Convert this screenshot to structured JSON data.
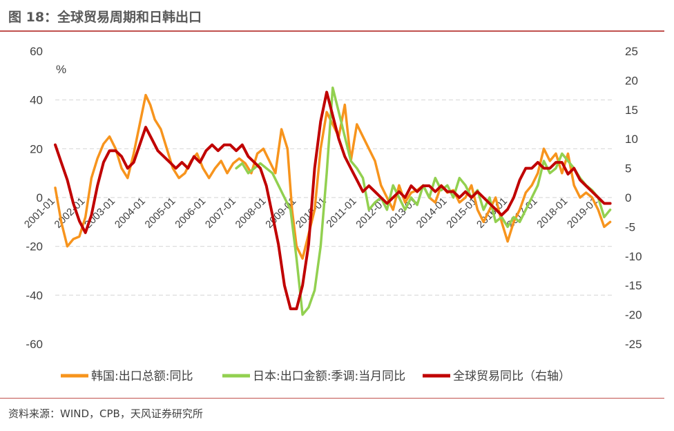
{
  "header": {
    "title": "图 18：全球贸易周期和日韩出口"
  },
  "footer": {
    "source": "资料来源：WIND，CPB，天风证券研究所"
  },
  "chart_data": {
    "type": "line",
    "y_unit": "%",
    "ylim_left": [
      -60,
      60
    ],
    "yticks_left": [
      "60",
      "40",
      "20",
      "0",
      "-20",
      "-40",
      "-60"
    ],
    "ylim_right": [
      -25,
      25
    ],
    "yticks_right": [
      "25",
      "20",
      "15",
      "10",
      "5",
      "0",
      "-5",
      "-10",
      "-15",
      "-20",
      "-25"
    ],
    "x_range": [
      2001.0,
      2019.5
    ],
    "xticks": [
      "2001-01",
      "2002-01",
      "2003-01",
      "2004-01",
      "2005-01",
      "2006-01",
      "2007-01",
      "2008-01",
      "2009-01",
      "2010-01",
      "2011-01",
      "2012-01",
      "2013-01",
      "2014-01",
      "2015-01",
      "2016-01",
      "2017-01",
      "2018-01",
      "2019-01"
    ],
    "grid": "horizontal dashed",
    "legend_position": "bottom",
    "series": [
      {
        "name": "韩国:出口总额:同比",
        "axis": "left",
        "color": "#f7941d",
        "x": [
          2001.0,
          2001.2,
          2001.4,
          2001.6,
          2001.8,
          2002.0,
          2002.2,
          2002.4,
          2002.6,
          2002.8,
          2003.0,
          2003.2,
          2003.4,
          2003.6,
          2003.8,
          2004.0,
          2004.15,
          2004.3,
          2004.5,
          2004.7,
          2004.9,
          2005.1,
          2005.3,
          2005.5,
          2005.7,
          2005.9,
          2006.1,
          2006.3,
          2006.5,
          2006.7,
          2006.9,
          2007.1,
          2007.3,
          2007.5,
          2007.7,
          2007.9,
          2008.1,
          2008.3,
          2008.5,
          2008.7,
          2008.85,
          2009.0,
          2009.2,
          2009.4,
          2009.6,
          2009.8,
          2010.0,
          2010.2,
          2010.4,
          2010.6,
          2010.8,
          2011.0,
          2011.2,
          2011.4,
          2011.6,
          2011.8,
          2012.0,
          2012.2,
          2012.4,
          2012.6,
          2012.8,
          2013.0,
          2013.2,
          2013.4,
          2013.6,
          2013.8,
          2014.0,
          2014.2,
          2014.4,
          2014.6,
          2014.8,
          2015.0,
          2015.2,
          2015.4,
          2015.6,
          2015.8,
          2016.0,
          2016.2,
          2016.4,
          2016.6,
          2016.8,
          2017.0,
          2017.2,
          2017.4,
          2017.6,
          2017.8,
          2018.0,
          2018.2,
          2018.4,
          2018.6,
          2018.8,
          2019.0,
          2019.2,
          2019.4
        ],
        "y": [
          4,
          -10,
          -20,
          -17,
          -16,
          -8,
          8,
          16,
          22,
          25,
          20,
          12,
          8,
          18,
          30,
          42,
          38,
          32,
          28,
          20,
          12,
          8,
          10,
          15,
          18,
          12,
          8,
          12,
          15,
          10,
          14,
          16,
          14,
          10,
          18,
          20,
          15,
          10,
          28,
          20,
          -5,
          -20,
          -25,
          -15,
          -5,
          20,
          35,
          30,
          25,
          38,
          15,
          30,
          25,
          20,
          15,
          5,
          0,
          -5,
          5,
          -2,
          2,
          3,
          5,
          0,
          -2,
          5,
          2,
          3,
          -2,
          0,
          5,
          -5,
          -10,
          -5,
          0,
          -10,
          -18,
          -10,
          -5,
          2,
          5,
          10,
          20,
          15,
          18,
          10,
          18,
          5,
          0,
          2,
          0,
          -5,
          -12,
          -10
        ]
      },
      {
        "name": "日本:出口金额:季调:当月同比",
        "axis": "left",
        "color": "#92d050",
        "x": [
          2007.0,
          2007.2,
          2007.4,
          2007.6,
          2007.8,
          2008.0,
          2008.2,
          2008.4,
          2008.6,
          2008.8,
          2009.0,
          2009.2,
          2009.4,
          2009.6,
          2009.8,
          2010.0,
          2010.2,
          2010.4,
          2010.6,
          2010.8,
          2011.0,
          2011.2,
          2011.4,
          2011.6,
          2011.8,
          2012.0,
          2012.2,
          2012.4,
          2012.6,
          2012.8,
          2013.0,
          2013.2,
          2013.4,
          2013.6,
          2013.8,
          2014.0,
          2014.2,
          2014.4,
          2014.6,
          2014.8,
          2015.0,
          2015.2,
          2015.4,
          2015.6,
          2015.8,
          2016.0,
          2016.2,
          2016.4,
          2016.6,
          2016.8,
          2017.0,
          2017.2,
          2017.4,
          2017.6,
          2017.8,
          2018.0,
          2018.2,
          2018.4,
          2018.6,
          2018.8,
          2019.0,
          2019.2,
          2019.4
        ],
        "y": [
          12,
          14,
          10,
          12,
          14,
          12,
          10,
          5,
          0,
          -5,
          -25,
          -48,
          -45,
          -38,
          -20,
          10,
          45,
          35,
          25,
          15,
          12,
          8,
          -5,
          -2,
          0,
          -5,
          5,
          0,
          -5,
          0,
          -3,
          5,
          0,
          8,
          3,
          5,
          0,
          8,
          5,
          0,
          3,
          -5,
          0,
          -10,
          -8,
          -12,
          -8,
          -10,
          -5,
          0,
          5,
          15,
          10,
          12,
          18,
          15,
          12,
          8,
          5,
          3,
          0,
          -8,
          -5
        ]
      },
      {
        "name": "全球贸易同比（右轴）",
        "axis": "right",
        "color": "#c00000",
        "x": [
          2001.0,
          2001.2,
          2001.4,
          2001.6,
          2001.8,
          2002.0,
          2002.2,
          2002.4,
          2002.6,
          2002.8,
          2003.0,
          2003.2,
          2003.4,
          2003.6,
          2003.8,
          2004.0,
          2004.2,
          2004.4,
          2004.6,
          2004.8,
          2005.0,
          2005.2,
          2005.4,
          2005.6,
          2005.8,
          2006.0,
          2006.2,
          2006.4,
          2006.6,
          2006.8,
          2007.0,
          2007.2,
          2007.4,
          2007.6,
          2007.8,
          2008.0,
          2008.2,
          2008.4,
          2008.6,
          2008.8,
          2009.0,
          2009.2,
          2009.4,
          2009.6,
          2009.8,
          2010.0,
          2010.2,
          2010.4,
          2010.6,
          2010.8,
          2011.0,
          2011.2,
          2011.4,
          2011.6,
          2011.8,
          2012.0,
          2012.2,
          2012.4,
          2012.6,
          2012.8,
          2013.0,
          2013.2,
          2013.4,
          2013.6,
          2013.8,
          2014.0,
          2014.2,
          2014.4,
          2014.6,
          2014.8,
          2015.0,
          2015.2,
          2015.4,
          2015.6,
          2015.8,
          2016.0,
          2016.2,
          2016.4,
          2016.6,
          2016.8,
          2017.0,
          2017.2,
          2017.4,
          2017.6,
          2017.8,
          2018.0,
          2018.2,
          2018.4,
          2018.6,
          2018.8,
          2019.0,
          2019.2,
          2019.4
        ],
        "y": [
          9,
          6,
          3,
          -1,
          -4,
          -6,
          -3,
          2,
          6,
          8,
          8,
          7,
          5,
          6,
          9,
          12,
          10,
          8,
          7,
          6,
          5,
          6,
          5,
          7,
          6,
          8,
          9,
          8,
          9,
          9,
          8,
          9,
          7,
          6,
          5,
          2,
          -3,
          -8,
          -15,
          -19,
          -19,
          -15,
          -8,
          5,
          13,
          18,
          14,
          10,
          7,
          5,
          3,
          1,
          2,
          1,
          0,
          -1,
          0,
          1,
          0,
          2,
          1,
          2,
          2,
          1,
          2,
          1,
          1,
          0,
          1,
          0,
          1,
          0,
          -1,
          -2,
          -3,
          -2,
          0,
          3,
          5,
          5,
          6,
          5,
          5,
          6,
          6,
          4,
          5,
          3,
          2,
          1,
          0,
          -1,
          -1
        ]
      }
    ]
  }
}
